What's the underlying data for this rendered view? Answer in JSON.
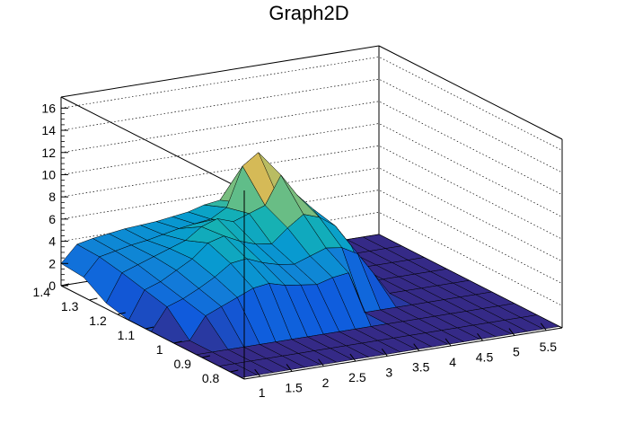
{
  "chart_data": {
    "type": "surface",
    "title": "Graph2D",
    "xlabel": "",
    "ylabel": "",
    "zlabel": "",
    "xlim": [
      0.75,
      5.75
    ],
    "ylim": [
      0.75,
      1.4
    ],
    "zlim": [
      0,
      17
    ],
    "x_ticks": [
      "1",
      "1.5",
      "2",
      "2.5",
      "3",
      "3.5",
      "4",
      "4.5",
      "5",
      "5.5"
    ],
    "y_ticks": [
      "0.8",
      "0.9",
      "1",
      "1.1",
      "1.2",
      "1.3",
      "1.4"
    ],
    "z_ticks": [
      "0",
      "2",
      "4",
      "6",
      "8",
      "10",
      "12",
      "14",
      "16"
    ],
    "grid": true,
    "colormap": "parula",
    "colors": {
      "low": "#352a87",
      "mid": "#21b1a5",
      "high": "#f9fb0e",
      "frame": "#000000",
      "grid": "#000000"
    },
    "surface_cols": [
      0.75,
      1.0,
      1.25,
      1.5,
      1.75,
      2.0,
      2.25,
      2.5,
      2.75,
      3.0,
      3.25,
      3.5,
      3.75,
      4.0,
      4.25,
      4.5,
      4.75,
      5.0,
      5.25,
      5.5,
      5.75
    ],
    "surface_rows": [
      1.4,
      1.32,
      1.24,
      1.16,
      1.08,
      1.0,
      0.92,
      0.84,
      0.76
    ],
    "surface_z": [
      [
        2,
        3.5,
        3.8,
        4.0,
        4.2,
        4.3,
        4.4,
        4.6,
        4.8,
        5.2,
        5.4,
        5.0,
        4.6,
        4.0,
        3.2,
        2.4,
        0,
        0,
        0,
        0,
        0
      ],
      [
        1.8,
        3.4,
        3.7,
        4.0,
        4.2,
        4.5,
        4.8,
        5.0,
        5.2,
        6.0,
        9.5,
        10.5,
        7.0,
        4.5,
        3.0,
        2.0,
        0,
        0,
        0,
        0,
        0
      ],
      [
        0.5,
        3.0,
        3.5,
        4.0,
        4.5,
        5.0,
        6.0,
        6.5,
        6.0,
        6.5,
        7.0,
        9.5,
        7.5,
        6.0,
        4.0,
        1.0,
        0,
        0,
        0,
        0,
        0
      ],
      [
        0,
        2.5,
        3.0,
        3.8,
        4.6,
        5.8,
        6.2,
        5.5,
        5.0,
        4.8,
        6.0,
        7.0,
        6.5,
        5.5,
        3.5,
        0,
        0,
        0,
        0,
        0,
        0
      ],
      [
        0,
        2.0,
        2.5,
        3.2,
        4.0,
        5.0,
        5.2,
        4.6,
        4.2,
        4.0,
        4.5,
        5.0,
        4.8,
        4.0,
        2.0,
        0,
        0,
        0,
        0,
        0,
        0
      ],
      [
        0,
        0,
        2.0,
        2.6,
        3.2,
        3.8,
        4.0,
        3.6,
        3.4,
        3.2,
        3.6,
        3.8,
        0,
        0,
        0,
        0,
        0,
        0,
        0,
        0,
        0
      ],
      [
        0,
        0,
        0,
        0,
        0,
        0,
        0,
        0,
        0,
        0,
        0,
        0,
        0,
        0,
        0,
        0,
        0,
        0,
        0,
        0,
        0
      ],
      [
        0,
        0,
        0,
        0,
        0,
        0,
        0,
        0,
        0,
        0,
        0,
        0,
        0,
        0,
        0,
        0,
        0,
        0,
        0,
        0,
        0
      ],
      [
        0,
        0,
        0,
        0,
        0,
        0,
        0,
        0,
        0,
        0,
        0,
        0,
        0,
        0,
        0,
        0,
        0,
        0,
        0,
        0,
        0
      ]
    ]
  }
}
